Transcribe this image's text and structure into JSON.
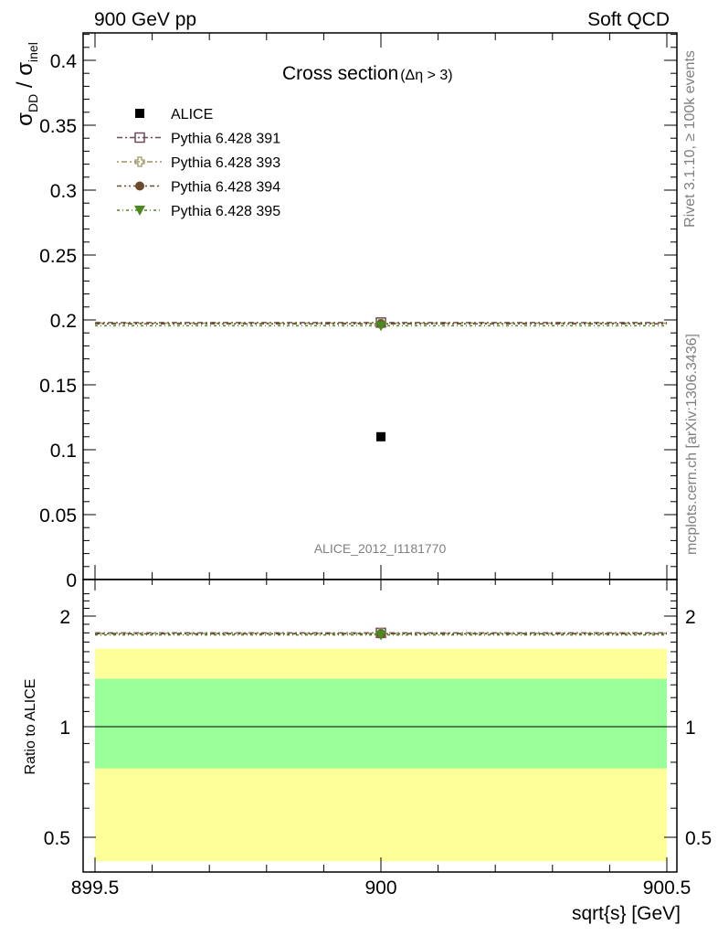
{
  "header": {
    "left": "900 GeV pp",
    "right": "Soft QCD"
  },
  "side_labels": {
    "rivet": "Rivet 3.1.10, ≥ 100k events",
    "mcplots": "mcplots.cern.ch [arXiv:1306.3436]"
  },
  "chart_data": [
    {
      "type": "scatter",
      "title": "Cross section",
      "title_suffix": "(Δη > 3)",
      "ylabel": "σ_DD / σ_inel",
      "ylabel_main": "σ",
      "ylabel_sub1": "DD",
      "ylabel_sep": " / σ",
      "ylabel_sub2": "inel",
      "xlim": [
        899.5,
        900.5
      ],
      "ylim": [
        0,
        0.42
      ],
      "yticks": [
        0,
        0.05,
        0.1,
        0.15,
        0.2,
        0.25,
        0.3,
        0.35,
        0.4
      ],
      "ytick_labels": [
        "0",
        "0.05",
        "0.1",
        "0.15",
        "0.2",
        "0.25",
        "0.3",
        "0.35",
        "0.4"
      ],
      "watermark": "ALICE_2012_I1181770",
      "legend_position": "top-left",
      "series": [
        {
          "name": "ALICE",
          "marker": "filled-square",
          "color": "#000000",
          "x": [
            900
          ],
          "y": [
            0.11
          ]
        },
        {
          "name": "Pythia 6.428 391",
          "marker": "open-square",
          "color": "#6e4a5c",
          "x": [
            899.5,
            900,
            900.5
          ],
          "y": [
            0.198,
            0.198,
            0.198
          ]
        },
        {
          "name": "Pythia 6.428 393",
          "marker": "open-cross",
          "color": "#9a9660",
          "x": [
            899.5,
            900,
            900.5
          ],
          "y": [
            0.1975,
            0.1975,
            0.1975
          ]
        },
        {
          "name": "Pythia 6.428 394",
          "marker": "filled-circle",
          "color": "#6b4a2c",
          "x": [
            899.5,
            900,
            900.5
          ],
          "y": [
            0.197,
            0.197,
            0.197
          ]
        },
        {
          "name": "Pythia 6.428 395",
          "marker": "filled-triangle-down",
          "color": "#4a8a1e",
          "x": [
            899.5,
            900,
            900.5
          ],
          "y": [
            0.1955,
            0.1955,
            0.1955
          ]
        }
      ]
    },
    {
      "type": "scatter",
      "ylabel": "Ratio to ALICE",
      "xlabel": "sqrt{s} [GeV]",
      "xlim": [
        899.5,
        900.5
      ],
      "ylim": [
        0.4,
        2.35
      ],
      "xticks": [
        899.5,
        900,
        900.5
      ],
      "xtick_labels": [
        "899.5",
        "900",
        "900.5"
      ],
      "yticks": [
        0.5,
        1,
        2
      ],
      "ytick_labels": [
        "0.5",
        "1",
        "2"
      ],
      "bands": [
        {
          "color": "#ffff99",
          "low": 0.43,
          "high": 1.63
        },
        {
          "color": "#99ff99",
          "low": 0.77,
          "high": 1.35
        }
      ],
      "reference_line": 1,
      "series": [
        {
          "name": "Pythia 6.428 391",
          "color": "#6e4a5c",
          "x": [
            899.5,
            900,
            900.5
          ],
          "y": [
            1.8,
            1.8,
            1.8
          ]
        },
        {
          "name": "Pythia 6.428 393",
          "color": "#9a9660",
          "x": [
            899.5,
            900,
            900.5
          ],
          "y": [
            1.795,
            1.795,
            1.795
          ]
        },
        {
          "name": "Pythia 6.428 394",
          "color": "#6b4a2c",
          "x": [
            899.5,
            900,
            900.5
          ],
          "y": [
            1.79,
            1.79,
            1.79
          ]
        },
        {
          "name": "Pythia 6.428 395",
          "color": "#4a8a1e",
          "x": [
            899.5,
            900,
            900.5
          ],
          "y": [
            1.777,
            1.777,
            1.777
          ]
        }
      ]
    }
  ]
}
